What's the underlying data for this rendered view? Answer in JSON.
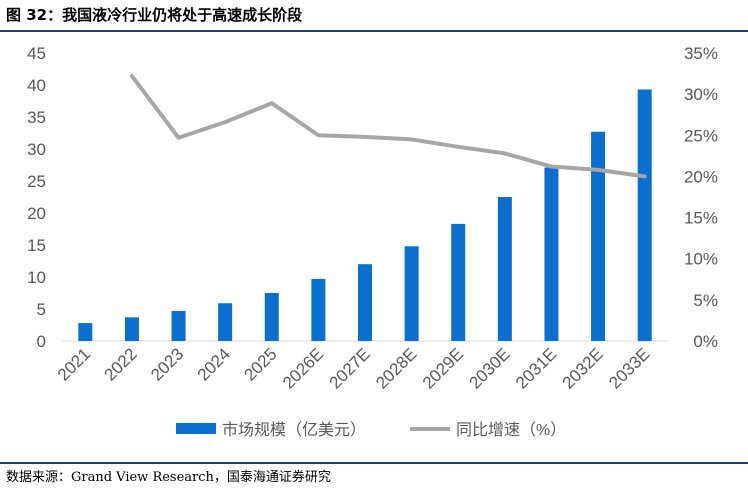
{
  "figure": {
    "title": "图 32：我国液冷行业仍将处于高速成长阶段",
    "source": "数据来源：Grand View Research，国泰海通证券研究"
  },
  "colors": {
    "bar": "#0b6fcf",
    "line": "#a6a6a6",
    "axis_text": "#595959",
    "rule": "#1f3d7a"
  },
  "chart_data": {
    "type": "bar",
    "categories": [
      "2021",
      "2022",
      "2023",
      "2024",
      "2025",
      "2026E",
      "2027E",
      "2028E",
      "2029E",
      "2030E",
      "2031E",
      "2032E",
      "2033E"
    ],
    "series": [
      {
        "name": "市场规模（亿美元）",
        "type": "bar",
        "axis": "left",
        "values": [
          2.8,
          3.7,
          4.7,
          5.9,
          7.5,
          9.7,
          12.0,
          14.8,
          18.3,
          22.5,
          27.1,
          32.7,
          39.3
        ]
      },
      {
        "name": "同比增速（%）",
        "type": "line",
        "axis": "right",
        "values": [
          null,
          0.322,
          0.247,
          0.266,
          0.289,
          0.25,
          0.248,
          0.245,
          0.236,
          0.228,
          0.212,
          0.208,
          0.2
        ]
      }
    ],
    "y_left": {
      "range": [
        0,
        45
      ],
      "ticks": [
        "0",
        "5",
        "10",
        "15",
        "20",
        "25",
        "30",
        "35",
        "40",
        "45"
      ]
    },
    "y_right": {
      "range": [
        0,
        0.35
      ],
      "ticks": [
        "0%",
        "5%",
        "10%",
        "15%",
        "20%",
        "25%",
        "30%",
        "35%"
      ]
    },
    "grid": false,
    "legend_position": "bottom"
  }
}
